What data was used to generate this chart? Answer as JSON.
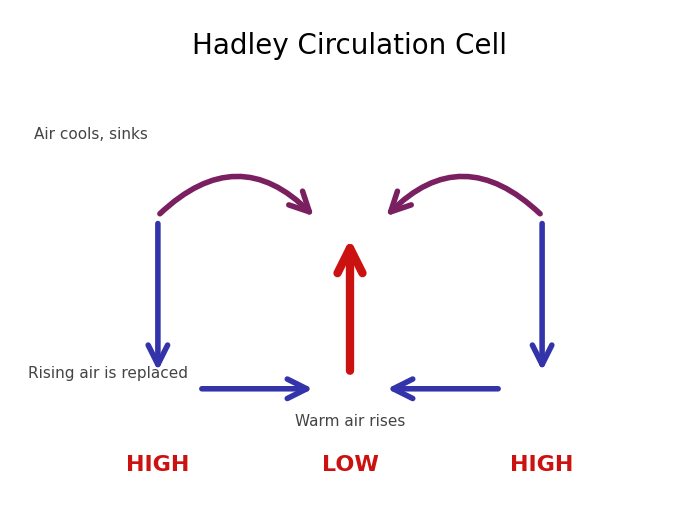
{
  "title": "Hadley Circulation Cell",
  "title_fontsize": 20,
  "background_color": "#ffffff",
  "blue_color": "#3333aa",
  "red_color": "#cc1111",
  "purple_color": "#7a2060",
  "text_color": "#444444",
  "red_text_color": "#cc1111",
  "label_air_cools": "Air cools, sinks",
  "label_rising": "Rising air is replaced",
  "label_warm": "Warm air rises",
  "label_high_left": "HIGH",
  "label_high_right": "HIGH",
  "label_low": "LOW"
}
